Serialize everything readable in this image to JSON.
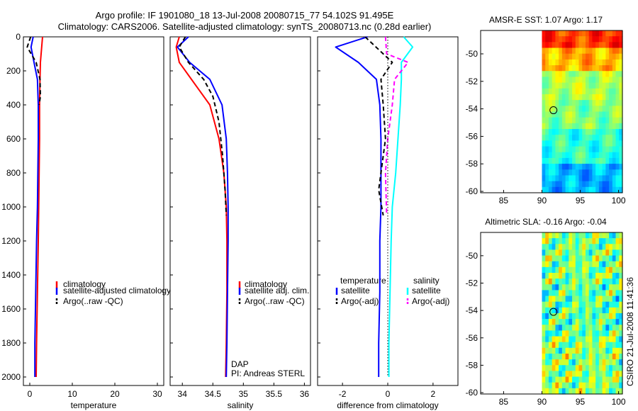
{
  "title": {
    "line1": "Argo profile: IF 1901080_18 13-Jul-2008 20080715_77 54.102S 91.495E",
    "line2": "Climatology: CARS2006. Satellite-adjusted climatology: synTS_20080713.nc (0.28d earlier)"
  },
  "watermark": "CSIRO 21-Jul-2008 11:41:36",
  "colors": {
    "red": "#ff0000",
    "blue": "#0000ff",
    "black": "#000000",
    "cyan": "#00ffff",
    "magenta": "#ff00ff"
  },
  "chart_data": [
    {
      "type": "line",
      "name": "temperature-profile",
      "xlabel": "temperature",
      "ylabel": "",
      "xlim": [
        -1.5,
        31.5
      ],
      "ylim": [
        2050,
        0
      ],
      "xticks": [
        0,
        10,
        20,
        30
      ],
      "xtick_labels": [
        "0",
        "10",
        "20",
        "30"
      ],
      "yticks": [
        0,
        200,
        400,
        600,
        800,
        1000,
        1200,
        1400,
        1600,
        1800,
        2000
      ],
      "ytick_labels": [
        "0",
        "200",
        "400",
        "600",
        "800",
        "1000",
        "1200",
        "1400",
        "1600",
        "1800",
        "2000"
      ],
      "legend": [
        "climatology",
        "satellite-adjusted climatology",
        "Argo(..raw -QC)"
      ],
      "series": [
        {
          "name": "climatology",
          "color": "red",
          "dash": "solid",
          "x": [
            3.0,
            2.8,
            2.5,
            2.4,
            2.3,
            2.3,
            2.2,
            2.1,
            2.0,
            1.8,
            1.6,
            1.5
          ],
          "y": [
            0,
            60,
            150,
            250,
            400,
            600,
            800,
            1000,
            1200,
            1500,
            1800,
            2000
          ]
        },
        {
          "name": "satellite-adjusted climatology",
          "color": "blue",
          "dash": "solid",
          "x": [
            0.8,
            0.3,
            1.0,
            1.8,
            2.0,
            2.0,
            1.9,
            1.8,
            1.6,
            1.4,
            1.2,
            1.2
          ],
          "y": [
            0,
            60,
            150,
            250,
            400,
            600,
            800,
            1000,
            1200,
            1500,
            1800,
            2000
          ]
        },
        {
          "name": "Argo(..raw -QC)",
          "color": "black",
          "dash": "dashed",
          "x": [
            0.2,
            -0.6,
            1.5,
            2.4,
            2.5,
            2.2
          ],
          "y": [
            0,
            60,
            150,
            250,
            350,
            400
          ]
        }
      ]
    },
    {
      "type": "line",
      "name": "salinity-profile",
      "xlabel": "salinity",
      "xlim": [
        33.8,
        36.1
      ],
      "ylim": [
        2050,
        0
      ],
      "xticks": [
        34,
        34.5,
        35,
        35.5,
        36
      ],
      "xtick_labels": [
        "34",
        "34.5",
        "35",
        "35.5",
        "36"
      ],
      "legend": [
        "climatology",
        "satellite adj. clim.",
        "Argo(..raw -QC)"
      ],
      "notes": [
        "DAP",
        "PI: Andreas STERL"
      ],
      "series": [
        {
          "name": "climatology",
          "color": "red",
          "dash": "solid",
          "x": [
            33.95,
            33.9,
            33.95,
            34.15,
            34.45,
            34.6,
            34.68,
            34.72,
            34.73,
            34.73,
            34.72,
            34.71
          ],
          "y": [
            0,
            60,
            150,
            250,
            400,
            600,
            800,
            1000,
            1200,
            1500,
            1800,
            2000
          ]
        },
        {
          "name": "satellite adj. clim.",
          "color": "blue",
          "dash": "solid",
          "x": [
            34.1,
            33.92,
            34.12,
            34.45,
            34.65,
            34.72,
            34.74,
            34.75,
            34.75,
            34.74,
            34.73,
            34.72
          ],
          "y": [
            0,
            60,
            150,
            250,
            400,
            600,
            800,
            1000,
            1200,
            1500,
            1800,
            2000
          ]
        },
        {
          "name": "Argo(..raw -QC)",
          "color": "black",
          "dash": "dashed",
          "x": [
            34.05,
            33.95,
            34.1,
            34.35,
            34.5,
            34.6,
            34.66,
            34.7,
            34.72
          ],
          "y": [
            0,
            60,
            150,
            250,
            350,
            500,
            700,
            900,
            1050
          ]
        }
      ]
    },
    {
      "type": "line",
      "name": "difference-profile",
      "xlabel": "difference from climatology",
      "xlim": [
        -3.1,
        3.1
      ],
      "ylim": [
        2050,
        0
      ],
      "xticks": [
        -2,
        0,
        2
      ],
      "xtick_labels": [
        "-2",
        "0",
        "2"
      ],
      "legend_temperature": {
        "title": "temperature",
        "items": [
          "satellite",
          "Argo(-adj)"
        ]
      },
      "legend_salinity": {
        "title": "salinity",
        "items": [
          "satellite",
          "Argo(-adj)"
        ]
      },
      "series": [
        {
          "name": "temperature satellite",
          "color": "blue",
          "dash": "solid",
          "x": [
            -0.9,
            -2.3,
            -1.3,
            -0.5,
            -0.35,
            -0.3,
            -0.3,
            -0.3,
            -0.35,
            -0.35,
            -0.4,
            -0.4
          ],
          "y": [
            0,
            60,
            150,
            250,
            400,
            600,
            800,
            1000,
            1200,
            1500,
            1800,
            2000
          ]
        },
        {
          "name": "temperature Argo(-adj)",
          "color": "black",
          "dash": "dashed",
          "x": [
            -1.0,
            -0.2,
            0.2,
            -0.3,
            -0.2,
            -0.1,
            -0.3,
            -0.4,
            -0.2
          ],
          "y": [
            0,
            100,
            150,
            250,
            400,
            600,
            800,
            900,
            1050
          ]
        },
        {
          "name": "salinity satellite",
          "color": "cyan",
          "dash": "solid",
          "x": [
            0.7,
            1.1,
            0.6,
            0.6,
            0.55,
            0.45,
            0.35,
            0.2,
            0.15,
            0.1,
            0.05,
            0.05
          ],
          "y": [
            0,
            60,
            150,
            250,
            400,
            600,
            800,
            1000,
            1200,
            1500,
            1800,
            2000
          ]
        },
        {
          "name": "salinity Argo(-adj)",
          "color": "magenta",
          "dash": "dashed",
          "x": [
            -0.1,
            -0.05,
            0.9,
            0.3,
            0.2,
            0.0,
            -0.1,
            -0.05
          ],
          "y": [
            0,
            100,
            150,
            250,
            400,
            600,
            800,
            1050
          ]
        },
        {
          "name": "zero line",
          "color": "black",
          "dash": "dotted",
          "x": [
            0,
            0
          ],
          "y": [
            0,
            2000
          ]
        }
      ]
    },
    {
      "type": "heatmap",
      "name": "amsr-sst-map",
      "title": "AMSR-E SST: 1.07 Argo: 1.17",
      "xlim": [
        82,
        100.5
      ],
      "ylim": [
        -60.1,
        -48.3
      ],
      "xticks": [
        85,
        90,
        95,
        100
      ],
      "xtick_labels": [
        "85",
        "90",
        "95",
        "100"
      ],
      "yticks": [
        -50,
        -52,
        -54,
        -56,
        -58,
        -60
      ],
      "ytick_labels": [
        "-50",
        "-52",
        "-54",
        "-56",
        "-58",
        "-60"
      ],
      "data_xlim": [
        90,
        100.5
      ],
      "argo_position": [
        91.5,
        -54.1
      ],
      "colormap": "jet",
      "lat_bands": [
        {
          "lat_top": -48.3,
          "lat_bottom": -49.7,
          "level": 0.82
        },
        {
          "lat_top": -49.7,
          "lat_bottom": -51.2,
          "level": 0.7
        },
        {
          "lat_top": -51.2,
          "lat_bottom": -53.2,
          "level": 0.55
        },
        {
          "lat_top": -53.2,
          "lat_bottom": -55.5,
          "level": 0.5
        },
        {
          "lat_top": -55.5,
          "lat_bottom": -57.8,
          "level": 0.42
        },
        {
          "lat_top": -57.8,
          "lat_bottom": -60.1,
          "level": 0.3
        }
      ]
    },
    {
      "type": "heatmap",
      "name": "altimetric-sla-map",
      "title": "Altimetric SLA: -0.16 Argo: -0.04",
      "xlim": [
        82,
        100.5
      ],
      "ylim": [
        -60.1,
        -48.3
      ],
      "xticks": [
        85,
        90,
        95,
        100
      ],
      "xtick_labels": [
        "85",
        "90",
        "95",
        "100"
      ],
      "yticks": [
        -50,
        -52,
        -54,
        -56,
        -58,
        -60
      ],
      "ytick_labels": [
        "-50",
        "-52",
        "-54",
        "-56",
        "-58",
        "-60"
      ],
      "data_xlim": [
        90,
        100.5
      ],
      "argo_position": [
        91.5,
        -54.1
      ],
      "colormap": "jet",
      "lat_bands": [
        {
          "lat_top": -48.3,
          "lat_bottom": -52.0,
          "level": 0.5
        },
        {
          "lat_top": -52.0,
          "lat_bottom": -56.0,
          "level": 0.47
        },
        {
          "lat_top": -56.0,
          "lat_bottom": -60.1,
          "level": 0.52
        }
      ]
    }
  ]
}
